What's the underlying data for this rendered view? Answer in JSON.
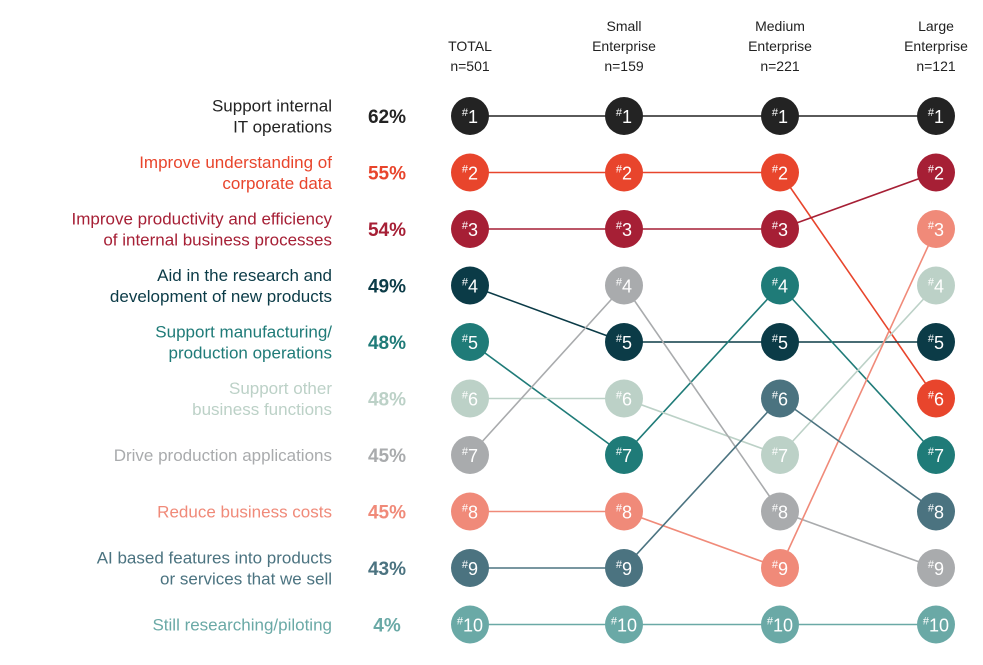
{
  "chart_data": {
    "type": "bump",
    "columns": [
      {
        "name": "TOTAL",
        "n": "n=501"
      },
      {
        "name": "Small\nEnterprise",
        "n": "n=159"
      },
      {
        "name": "Medium\nEnterprise",
        "n": "n=221"
      },
      {
        "name": "Large\nEnterprise",
        "n": "n=121"
      }
    ],
    "rank_prefix": "#",
    "series": [
      {
        "name": "Support internal\nIT operations",
        "total_pct": "62%",
        "color": "#232323",
        "ranks": [
          1,
          1,
          1,
          1
        ]
      },
      {
        "name": "Improve understanding of\ncorporate data",
        "total_pct": "55%",
        "color": "#e8452c",
        "ranks": [
          2,
          2,
          2,
          6
        ]
      },
      {
        "name": "Improve productivity and efficiency\nof internal business processes",
        "total_pct": "54%",
        "color": "#a61f35",
        "ranks": [
          3,
          3,
          3,
          2
        ]
      },
      {
        "name": "Aid in the research and\ndevelopment of new products",
        "total_pct": "49%",
        "color": "#0b3b47",
        "ranks": [
          4,
          5,
          5,
          5
        ]
      },
      {
        "name": "Support manufacturing/\nproduction operations",
        "total_pct": "48%",
        "color": "#1f7b78",
        "ranks": [
          5,
          7,
          4,
          7
        ]
      },
      {
        "name": "Support other\nbusiness functions",
        "total_pct": "48%",
        "color": "#bcd1c7",
        "ranks": [
          6,
          6,
          7,
          4
        ]
      },
      {
        "name": "Drive production applications",
        "total_pct": "45%",
        "color": "#a9abad",
        "ranks": [
          7,
          4,
          8,
          9
        ]
      },
      {
        "name": "Reduce business costs",
        "total_pct": "45%",
        "color": "#f08a79",
        "ranks": [
          8,
          8,
          9,
          3
        ]
      },
      {
        "name": "AI based features into products\nor services that we sell",
        "total_pct": "43%",
        "color": "#4b7380",
        "ranks": [
          9,
          9,
          6,
          8
        ]
      },
      {
        "name": "Still researching/piloting",
        "total_pct": "4%",
        "color": "#6aa9a6",
        "ranks": [
          10,
          10,
          10,
          10
        ]
      }
    ]
  }
}
